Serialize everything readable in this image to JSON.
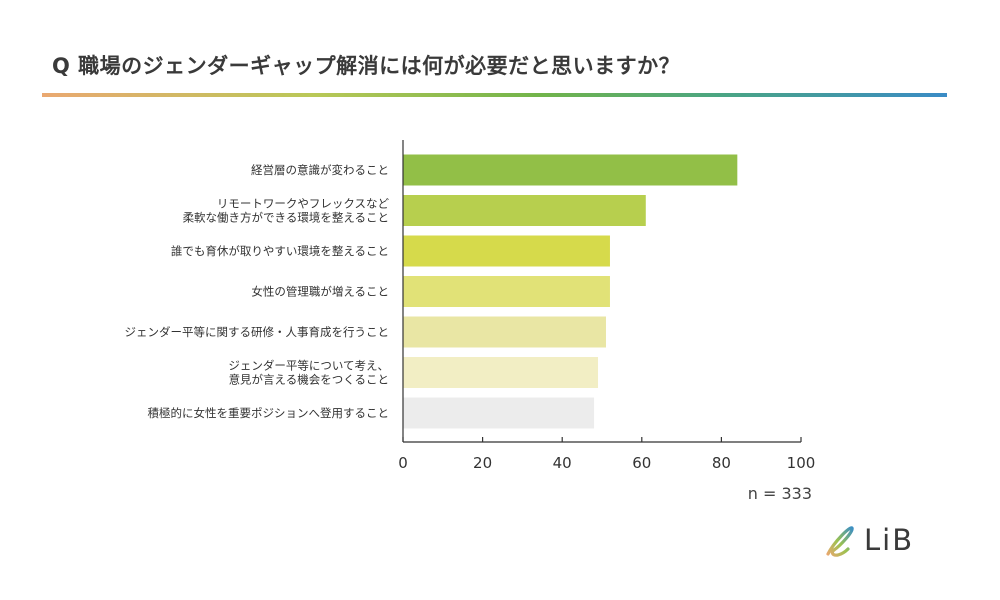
{
  "title": "Q 職場のジェンダーギャップ解消には何が必要だと思いますか？",
  "footnote": "n = 333",
  "logo": {
    "text": "LiB",
    "icon": "script-l-leaf-icon"
  },
  "colors": {
    "rule_gradient": [
      "#eaa871",
      "#b9c857",
      "#71b44a",
      "#4aa583",
      "#3a8bc6"
    ],
    "axis": "#333333"
  },
  "chart_data": {
    "type": "bar",
    "orientation": "horizontal",
    "title": "Q 職場のジェンダーギャップ解消には何が必要だと思いますか？",
    "xlabel": "",
    "ylabel": "",
    "xlim": [
      0,
      100
    ],
    "xticks": [
      0,
      20,
      40,
      60,
      80,
      100
    ],
    "grid": false,
    "categories": [
      [
        "経営層の意識が変わること"
      ],
      [
        "リモートワークやフレックスなど",
        "柔軟な働き方ができる環境を整えること"
      ],
      [
        "誰でも育休が取りやすい環境を整えること"
      ],
      [
        "女性の管理職が増えること"
      ],
      [
        "ジェンダー平等に関する研修・人事育成を行うこと"
      ],
      [
        "ジェンダー平等について考え、",
        "意見が言える機会をつくること"
      ],
      [
        "積極的に女性を重要ポジションへ登用すること"
      ]
    ],
    "values": [
      84,
      61,
      52,
      52,
      51,
      49,
      48
    ],
    "bar_colors": [
      "#92bf47",
      "#b7cf4e",
      "#d6da4b",
      "#e1e277",
      "#e9e6a4",
      "#f2eec4",
      "#ececec"
    ]
  }
}
